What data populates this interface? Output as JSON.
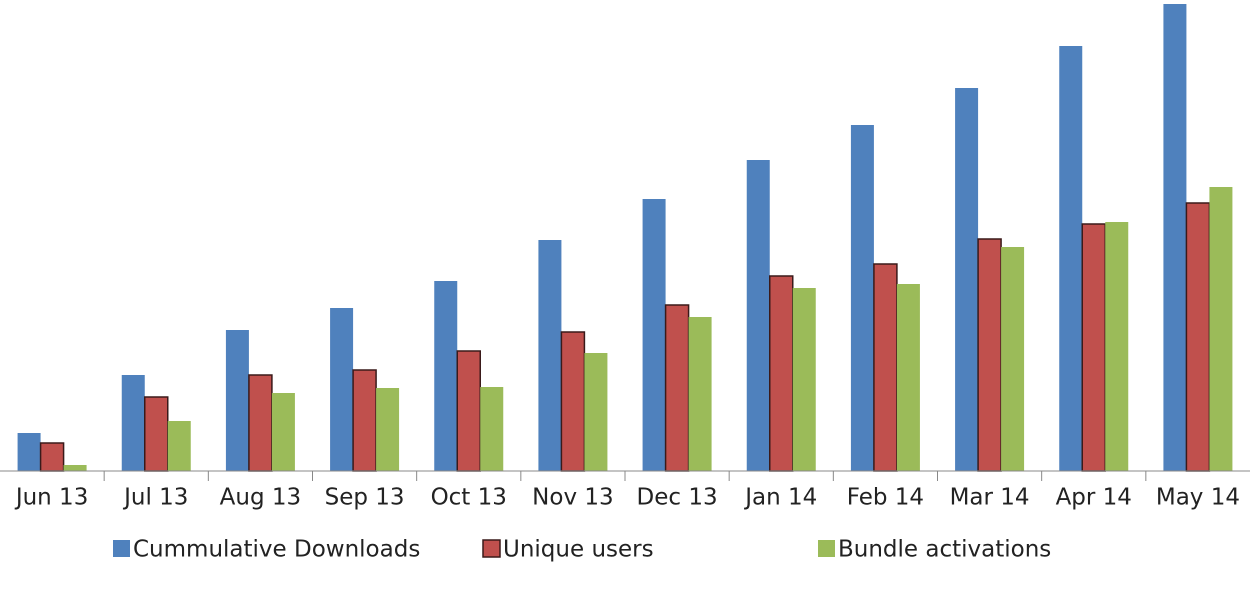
{
  "chart_data": {
    "type": "bar",
    "categories": [
      "Jun 13",
      "Jul 13",
      "Aug 13",
      "Sep 13",
      "Oct 13",
      "Nov 13",
      "Dec 13",
      "Jan 14",
      "Feb 14",
      "Mar 14",
      "Apr 14",
      "May 14"
    ],
    "series": [
      {
        "name": "Cummulative Downloads",
        "color": "#4f81bd",
        "values": [
          38,
          96,
          141,
          163,
          190,
          231,
          272,
          311,
          346,
          383,
          425,
          467
        ]
      },
      {
        "name": "Unique users",
        "color": "#c0504d",
        "values": [
          28,
          74,
          96,
          101,
          120,
          139,
          166,
          195,
          207,
          232,
          247,
          268
        ]
      },
      {
        "name": "Bundle activations",
        "color": "#9bbb59",
        "values": [
          6,
          50,
          78,
          83,
          84,
          118,
          154,
          183,
          187,
          224,
          249,
          284
        ]
      }
    ],
    "ylim": [
      0,
      470
    ],
    "legend": "bottom"
  }
}
